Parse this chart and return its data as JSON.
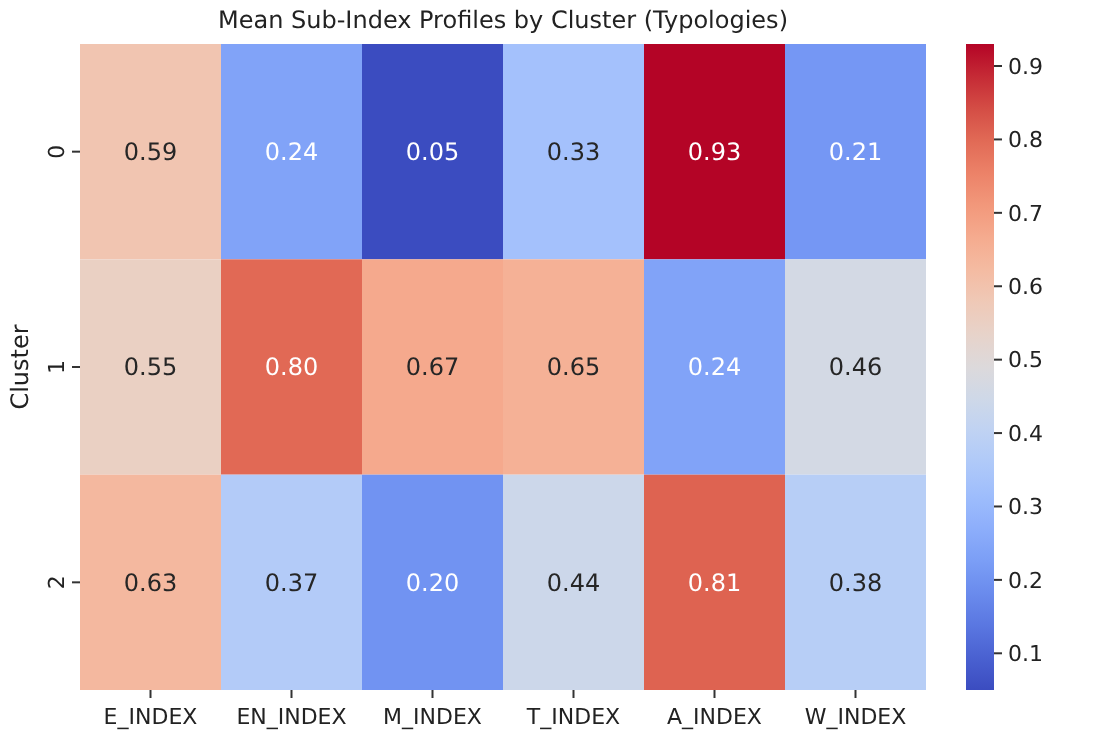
{
  "chart_data": {
    "type": "heatmap",
    "title": "Mean Sub-Index Profiles by Cluster (Typologies)",
    "ylabel": "Cluster",
    "categories": [
      "E_INDEX",
      "EN_INDEX",
      "M_INDEX",
      "T_INDEX",
      "A_INDEX",
      "W_INDEX"
    ],
    "y_categories": [
      "0",
      "1",
      "2"
    ],
    "cells": [
      [
        0.59,
        0.24,
        0.05,
        0.33,
        0.93,
        0.21
      ],
      [
        0.55,
        0.8,
        0.67,
        0.65,
        0.24,
        0.46
      ],
      [
        0.63,
        0.37,
        0.2,
        0.44,
        0.81,
        0.38
      ]
    ],
    "cell_labels": [
      [
        "0.59",
        "0.24",
        "0.05",
        "0.33",
        "0.93",
        "0.21"
      ],
      [
        "0.55",
        "0.80",
        "0.67",
        "0.65",
        "0.24",
        "0.46"
      ],
      [
        "0.63",
        "0.37",
        "0.20",
        "0.44",
        "0.81",
        "0.38"
      ]
    ],
    "clim": [
      0.05,
      0.93
    ],
    "cticks": [
      0.1,
      0.2,
      0.3,
      0.4,
      0.5,
      0.6,
      0.7,
      0.8,
      0.9
    ]
  }
}
